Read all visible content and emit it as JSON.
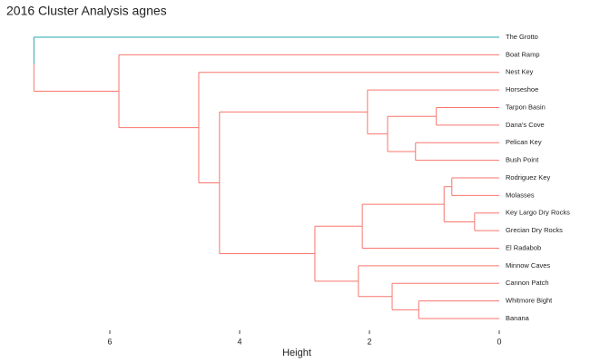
{
  "chart_data": {
    "type": "dendrogram",
    "title": "2016 Cluster Analysis agnes",
    "x_label": "Height",
    "leaves": [
      "The Grotto",
      "Boat Ramp",
      "Nest Key",
      "Horseshoe",
      "Tarpon Basin",
      "Dana's Cove",
      "Pelican Key",
      "Bush Point",
      "Rodriguez Key",
      "Molasses",
      "Key Largo Dry Rocks",
      "Grecian Dry Rocks",
      "El Radabob",
      "Minnow Caves",
      "Cannon Patch",
      "Whitmore Bight",
      "Banana"
    ],
    "merge": [
      [
        -11,
        -12
      ],
      [
        -9,
        -10
      ],
      [
        2,
        1
      ],
      [
        -5,
        -6
      ],
      [
        -16,
        -17
      ],
      [
        -7,
        -8
      ],
      [
        -15,
        5
      ],
      [
        4,
        6
      ],
      [
        -4,
        8
      ],
      [
        3,
        -13
      ],
      [
        -14,
        7
      ],
      [
        10,
        11
      ],
      [
        9,
        12
      ],
      [
        -3,
        13
      ],
      [
        -2,
        14
      ],
      [
        -1,
        15
      ]
    ],
    "heights": [
      0.38,
      0.73,
      0.85,
      0.97,
      1.24,
      1.29,
      1.65,
      1.72,
      2.03,
      2.11,
      2.17,
      2.84,
      4.31,
      4.63,
      5.86,
      7.17
    ],
    "clusters": [
      {
        "color": "#26a6b0",
        "leaves": [
          0
        ]
      },
      {
        "color": "#f8766d",
        "leaves": [
          1,
          2,
          3,
          4,
          5,
          6,
          7,
          8,
          9,
          10,
          11,
          12,
          13,
          14,
          15,
          16
        ]
      }
    ],
    "xlim": [
      0,
      7.2
    ],
    "x_reversed": true,
    "xticks": [
      6,
      4,
      2,
      0
    ]
  }
}
